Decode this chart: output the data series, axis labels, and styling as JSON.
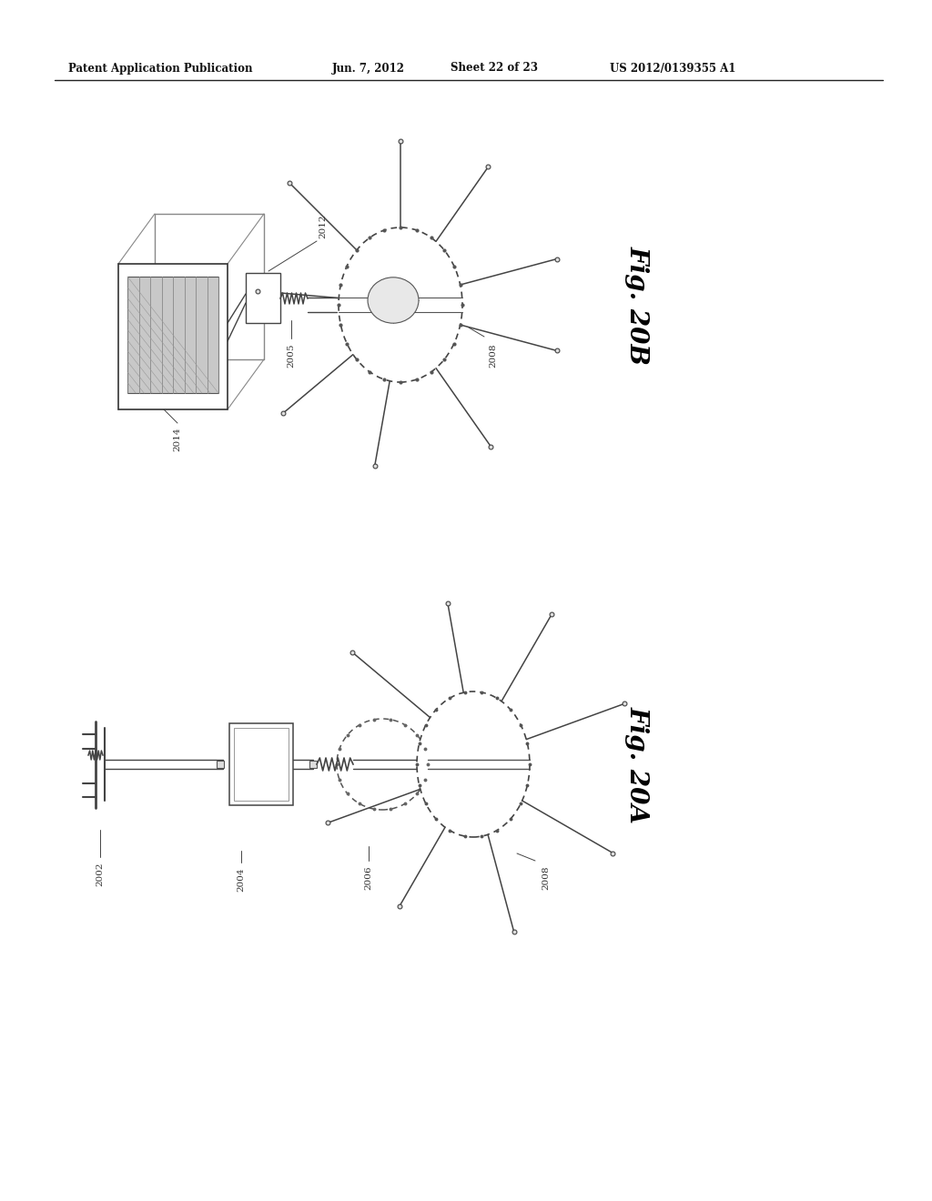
{
  "bg_color": "#ffffff",
  "header_text": "Patent Application Publication",
  "header_date": "Jun. 7, 2012",
  "header_sheet": "Sheet 22 of 23",
  "header_patent": "US 2012/0139355 A1",
  "fig20b_label": "Fig. 20B",
  "fig20a_label": "Fig. 20A",
  "line_color": "#444444",
  "label_fontsize": 7.5,
  "fig_label_fontsize": 20
}
